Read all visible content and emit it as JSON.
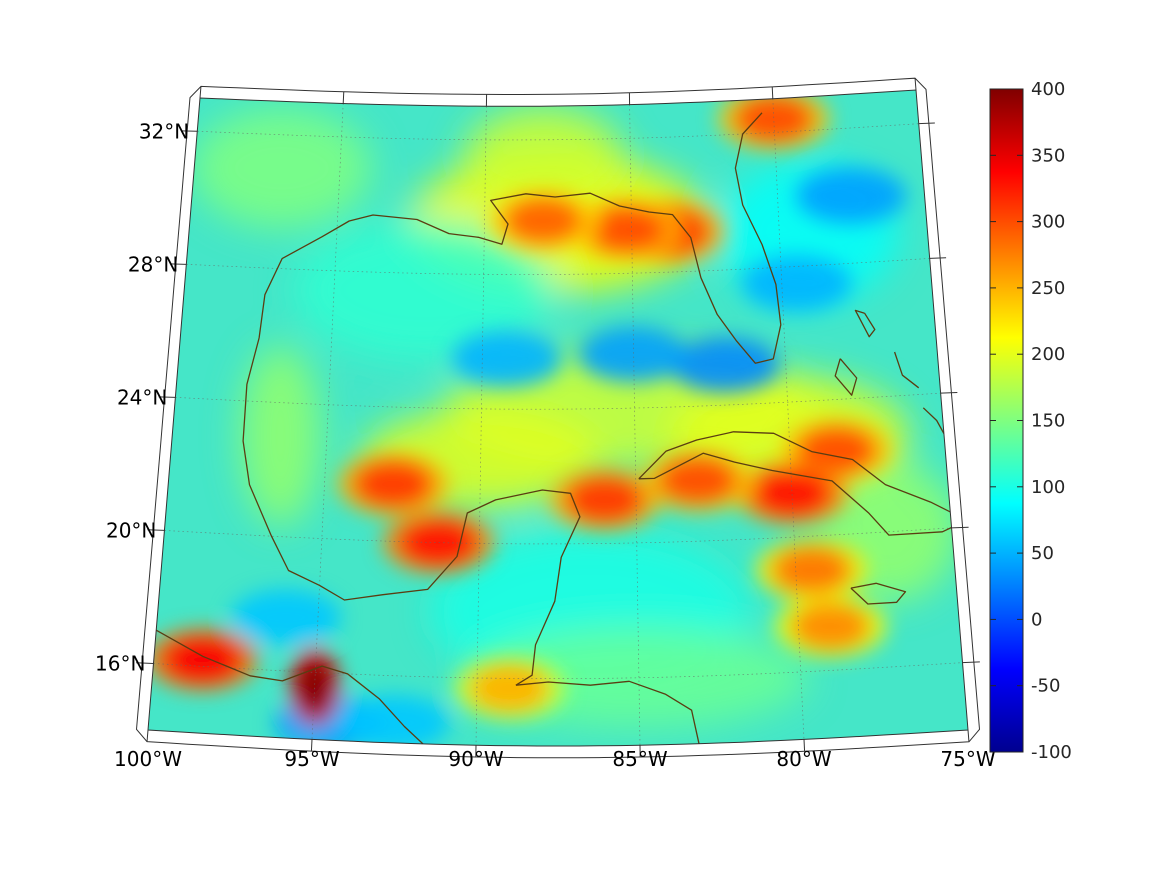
{
  "map": {
    "projection": "conic",
    "extent": {
      "lon_min": -100,
      "lon_max": -75,
      "lat_min": 14,
      "lat_max": 33
    },
    "lon_labels": [
      "100°W",
      "95°W",
      "90°W",
      "85°W",
      "80°W",
      "75°W"
    ],
    "lat_labels": [
      "32°N",
      "28°N",
      "24°N",
      "20°N",
      "16°N"
    ],
    "coastline_color": "#5a3d12",
    "grid_style": "dotted"
  },
  "colorbar": {
    "colormap": "jet",
    "range": [
      -100,
      400
    ],
    "ticks": [
      "400",
      "350",
      "300",
      "250",
      "200",
      "150",
      "100",
      "50",
      "0",
      "-50",
      "-100"
    ]
  },
  "hotspots": [
    {
      "lon": -95.0,
      "lat": 15.6,
      "value": 400
    },
    {
      "lon": -98.5,
      "lat": 16.2,
      "value": 340
    },
    {
      "lon": -83.8,
      "lat": 29.2,
      "value": 320
    },
    {
      "lon": -85.2,
      "lat": 29.3,
      "value": 300
    },
    {
      "lon": -88.0,
      "lat": 29.6,
      "value": 290
    },
    {
      "lon": -92.8,
      "lat": 21.7,
      "value": 310
    },
    {
      "lon": -91.3,
      "lat": 20.0,
      "value": 330
    },
    {
      "lon": -78.5,
      "lat": 22.5,
      "value": 300
    },
    {
      "lon": -80.0,
      "lat": 21.3,
      "value": 330
    },
    {
      "lon": -83.0,
      "lat": 21.8,
      "value": 300
    },
    {
      "lon": -86.0,
      "lat": 21.3,
      "value": 310
    },
    {
      "lon": -80.0,
      "lat": 32.4,
      "value": 300
    },
    {
      "lon": -79.0,
      "lat": 17.3,
      "value": 270
    },
    {
      "lon": -79.5,
      "lat": 19.0,
      "value": 280
    },
    {
      "lon": -89.0,
      "lat": 15.7,
      "value": 250
    }
  ],
  "lowspots": [
    {
      "lon": -82.0,
      "lat": 25.2,
      "value": 30
    },
    {
      "lon": -85.0,
      "lat": 25.6,
      "value": 40
    },
    {
      "lon": -89.2,
      "lat": 25.5,
      "value": 50
    },
    {
      "lon": -77.5,
      "lat": 30.0,
      "value": 40
    },
    {
      "lon": -79.5,
      "lat": 27.5,
      "value": 50
    },
    {
      "lon": -96.0,
      "lat": 17.6,
      "value": 60
    },
    {
      "lon": -94.5,
      "lat": 14.5,
      "value": 40
    },
    {
      "lon": -92.5,
      "lat": 14.6,
      "value": 60
    }
  ]
}
